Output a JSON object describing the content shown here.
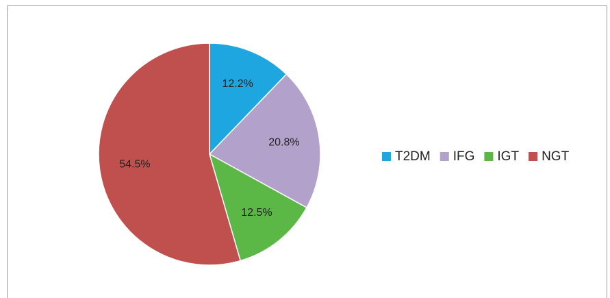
{
  "chart_data": {
    "type": "pie",
    "categories": [
      "T2DM",
      "IFG",
      "IGT",
      "NGT"
    ],
    "values": [
      12.2,
      20.8,
      12.5,
      54.5
    ],
    "value_labels": [
      "12.2%",
      "20.8%",
      "12.5%",
      "54.5%"
    ],
    "colors": [
      "#1ea6e0",
      "#b2a1cb",
      "#5bb846",
      "#c0504d"
    ],
    "legend": "right"
  }
}
